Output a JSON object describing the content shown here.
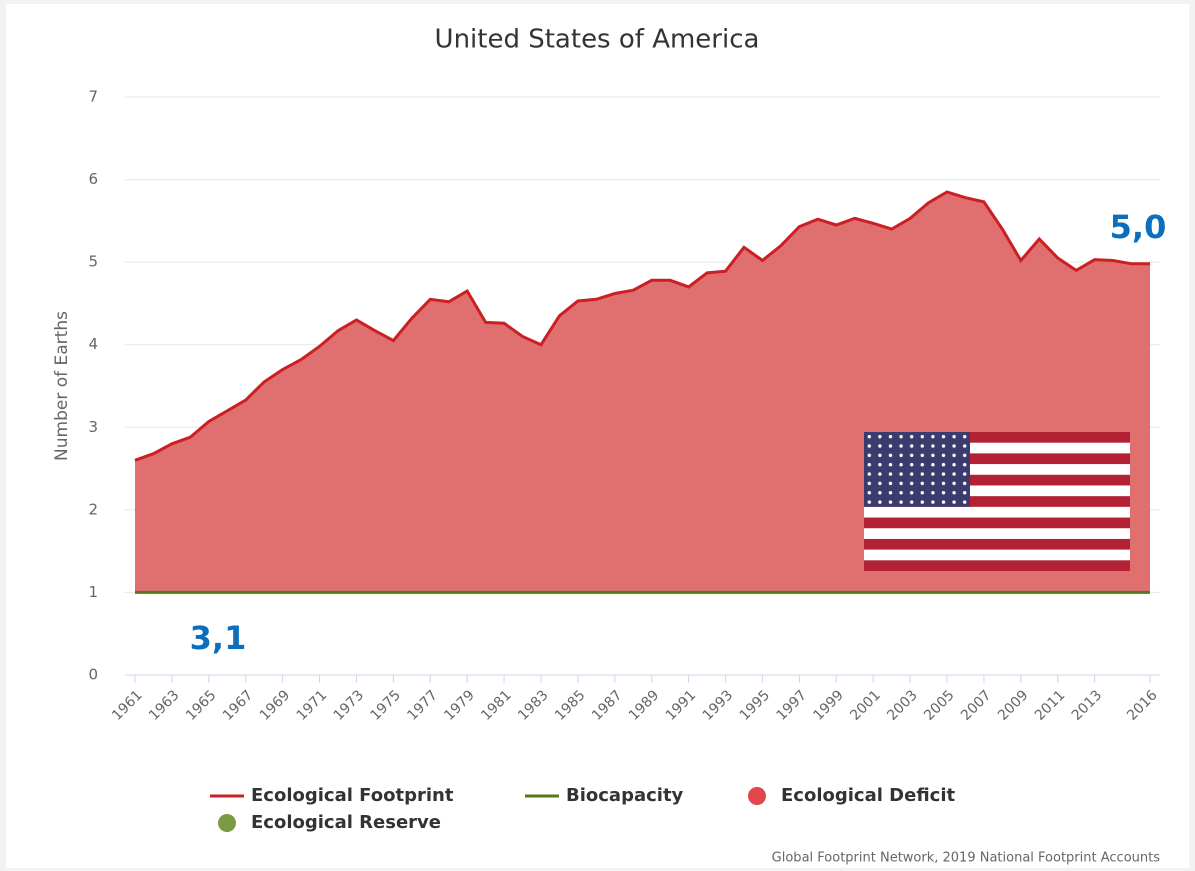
{
  "chart_data": {
    "type": "area",
    "title": "United States of America",
    "y_label": "Number of Earths",
    "categories": [
      "1961",
      null,
      "1963",
      null,
      "1965",
      null,
      "1967",
      null,
      "1969",
      null,
      "1971",
      null,
      "1973",
      null,
      "1975",
      null,
      "1977",
      null,
      "1979",
      null,
      "1981",
      null,
      "1983",
      null,
      "1985",
      null,
      "1987",
      null,
      "1989",
      null,
      "1991",
      null,
      "1993",
      null,
      "1995",
      null,
      "1997",
      null,
      "1999",
      null,
      "2001",
      null,
      "2003",
      null,
      "2005",
      null,
      "2007",
      null,
      "2009",
      null,
      "2011",
      null,
      "2013",
      null,
      null,
      "2016"
    ],
    "series": [
      {
        "name": "Ecological Footprint",
        "color": "#cc1f24",
        "values": [
          2.6,
          2.68,
          2.8,
          2.88,
          3.07,
          3.2,
          3.33,
          3.55,
          3.7,
          3.82,
          3.98,
          4.17,
          4.3,
          4.17,
          4.05,
          4.32,
          4.55,
          4.52,
          4.65,
          4.27,
          4.26,
          4.1,
          4.0,
          4.35,
          4.53,
          4.55,
          4.62,
          4.66,
          4.78,
          4.78,
          4.7,
          4.87,
          4.89,
          5.18,
          5.02,
          5.2,
          5.43,
          5.52,
          5.45,
          5.53,
          5.47,
          5.4,
          5.53,
          5.72,
          5.85,
          5.78,
          5.73,
          5.4,
          5.02,
          5.28,
          5.05,
          4.9,
          5.03,
          5.02,
          4.98,
          4.98
        ]
      },
      {
        "name": "Biocapacity",
        "color": "#557a1c",
        "values": [
          1,
          1,
          1,
          1,
          1,
          1,
          1,
          1,
          1,
          1,
          1,
          1,
          1,
          1,
          1,
          1,
          1,
          1,
          1,
          1,
          1,
          1,
          1,
          1,
          1,
          1,
          1,
          1,
          1,
          1,
          1,
          1,
          1,
          1,
          1,
          1,
          1,
          1,
          1,
          1,
          1,
          1,
          1,
          1,
          1,
          1,
          1,
          1,
          1,
          1,
          1,
          1,
          1,
          1,
          1,
          1
        ]
      }
    ],
    "area_legend": [
      {
        "name": "Ecological Deficit",
        "color": "#e0464b"
      },
      {
        "name": "Ecological Reserve",
        "color": "#7a9a45"
      }
    ],
    "deficit_fill": "#e07070",
    "ylim": [
      0,
      7
    ],
    "yticks": [
      0,
      1,
      2,
      3,
      4,
      5,
      6,
      7
    ],
    "grid": true,
    "annotations": [
      "5,0",
      "3,1"
    ],
    "credit": "Global Footprint Network, 2019 National Footprint Accounts"
  }
}
